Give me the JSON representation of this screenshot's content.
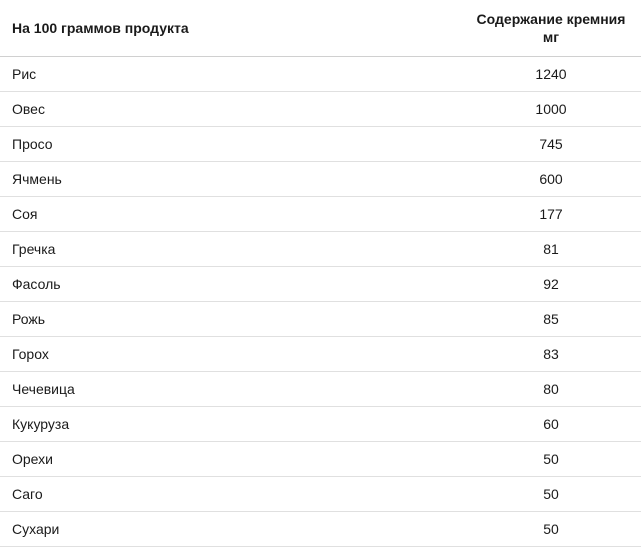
{
  "table": {
    "type": "table",
    "columns": [
      {
        "label": "На 100 граммов продукта",
        "align": "left"
      },
      {
        "label": "Содержание кремния мг",
        "align": "center"
      }
    ],
    "rows": [
      {
        "name": "Рис",
        "value": "1240"
      },
      {
        "name": "Овес",
        "value": "1000"
      },
      {
        "name": "Просо",
        "value": "745"
      },
      {
        "name": "Ячмень",
        "value": "600"
      },
      {
        "name": "Соя",
        "value": "177"
      },
      {
        "name": "Гречка",
        "value": "81"
      },
      {
        "name": "Фасоль",
        "value": "92"
      },
      {
        "name": "Рожь",
        "value": "85"
      },
      {
        "name": "Горох",
        "value": "83"
      },
      {
        "name": "Чечевица",
        "value": "80"
      },
      {
        "name": "Кукуруза",
        "value": "60"
      },
      {
        "name": "Орехи",
        "value": "50"
      },
      {
        "name": "Саго",
        "value": "50"
      },
      {
        "name": "Сухари",
        "value": "50"
      }
    ],
    "styling": {
      "background_color": "#ffffff",
      "header_font_weight": "bold",
      "header_fontsize": 14,
      "body_fontsize": 14,
      "text_color": "#1a1a1a",
      "header_border_color": "#d0d0d0",
      "row_border_color": "#e0e0e0",
      "cell_padding_y": 9,
      "cell_padding_x": 12,
      "value_column_width": 180
    }
  }
}
